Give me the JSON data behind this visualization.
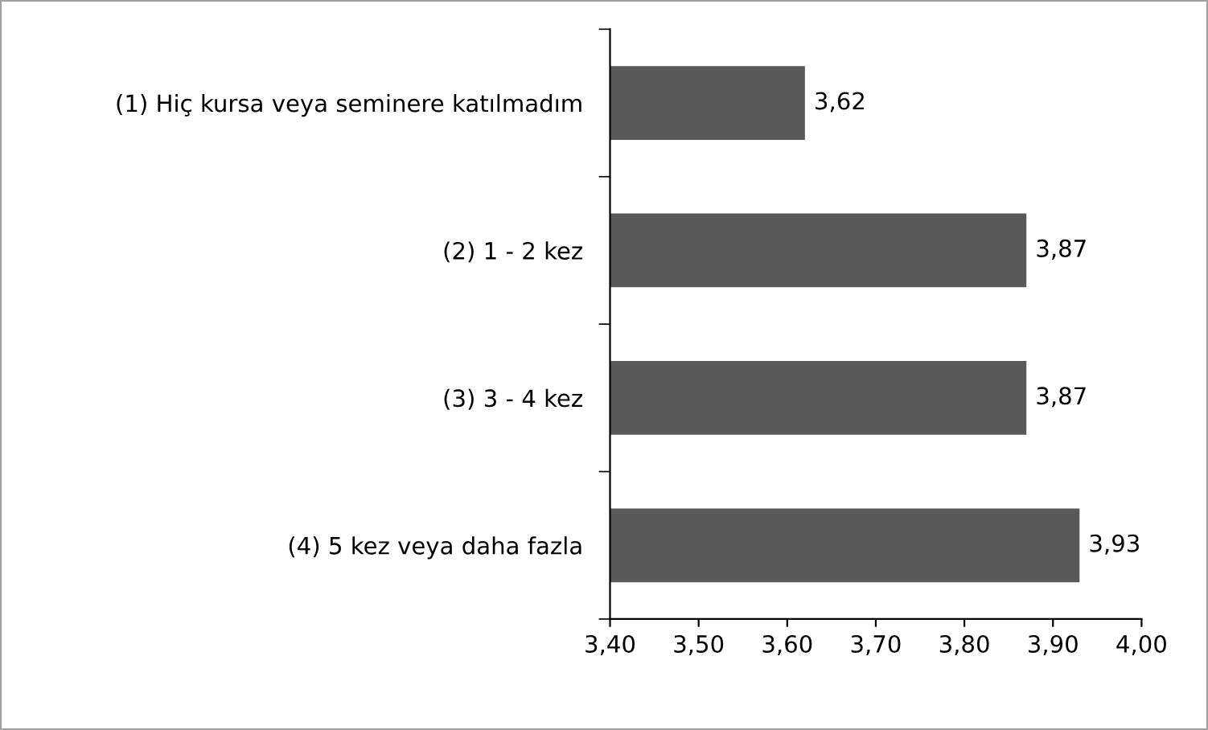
{
  "chart_data": {
    "type": "bar",
    "orientation": "horizontal",
    "categories": [
      "(1) Hiç kursa veya seminere katılmadım",
      "(2) 1 - 2 kez",
      "(3) 3 - 4 kez",
      "(4) 5 kez veya daha fazla"
    ],
    "values": [
      3.62,
      3.87,
      3.87,
      3.93
    ],
    "value_labels": [
      "3,62",
      "3,87",
      "3,87",
      "3,93"
    ],
    "color": "#595959",
    "xlim": [
      3.4,
      4.0
    ],
    "xticks": [
      {
        "value": 3.4,
        "label": "3,40"
      },
      {
        "value": 3.5,
        "label": "3,50"
      },
      {
        "value": 3.6,
        "label": "3,60"
      },
      {
        "value": 3.7,
        "label": "3,70"
      },
      {
        "value": 3.8,
        "label": "3,80"
      },
      {
        "value": 3.9,
        "label": "3,90"
      },
      {
        "value": 4.0,
        "label": "4,00"
      }
    ],
    "grid": false,
    "legend": false
  }
}
